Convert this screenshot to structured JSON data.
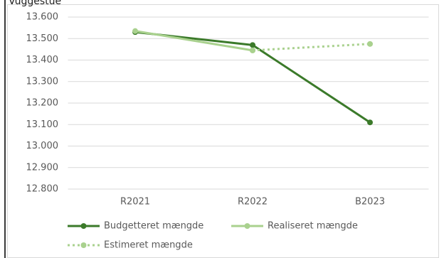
{
  "chart_data": {
    "type": "line",
    "title": "Vuggestue",
    "categories": [
      "R2021",
      "R2022",
      "B2023"
    ],
    "series": [
      {
        "name": "Budgetteret mængde",
        "color": "#3b7a2a",
        "line_style": "solid",
        "values": [
          13530,
          13470,
          13110
        ]
      },
      {
        "name": "Realiseret mængde",
        "color": "#a9d18e",
        "line_style": "solid",
        "values": [
          13535,
          13445,
          null
        ]
      },
      {
        "name": "Estimeret mængde",
        "color": "#a9d18e",
        "line_style": "dotted",
        "values": [
          null,
          13445,
          13475
        ]
      }
    ],
    "ylim": [
      12800,
      13600
    ],
    "yticks": [
      {
        "value": 12800,
        "label": "12.800"
      },
      {
        "value": 12900,
        "label": "12.900"
      },
      {
        "value": 13000,
        "label": "13.000"
      },
      {
        "value": 13100,
        "label": "13.100"
      },
      {
        "value": 13200,
        "label": "13.200"
      },
      {
        "value": 13300,
        "label": "13.300"
      },
      {
        "value": 13400,
        "label": "13.400"
      },
      {
        "value": 13500,
        "label": "13.500"
      },
      {
        "value": 13600,
        "label": "13.600"
      }
    ],
    "grid": true,
    "legend": "bottom"
  }
}
